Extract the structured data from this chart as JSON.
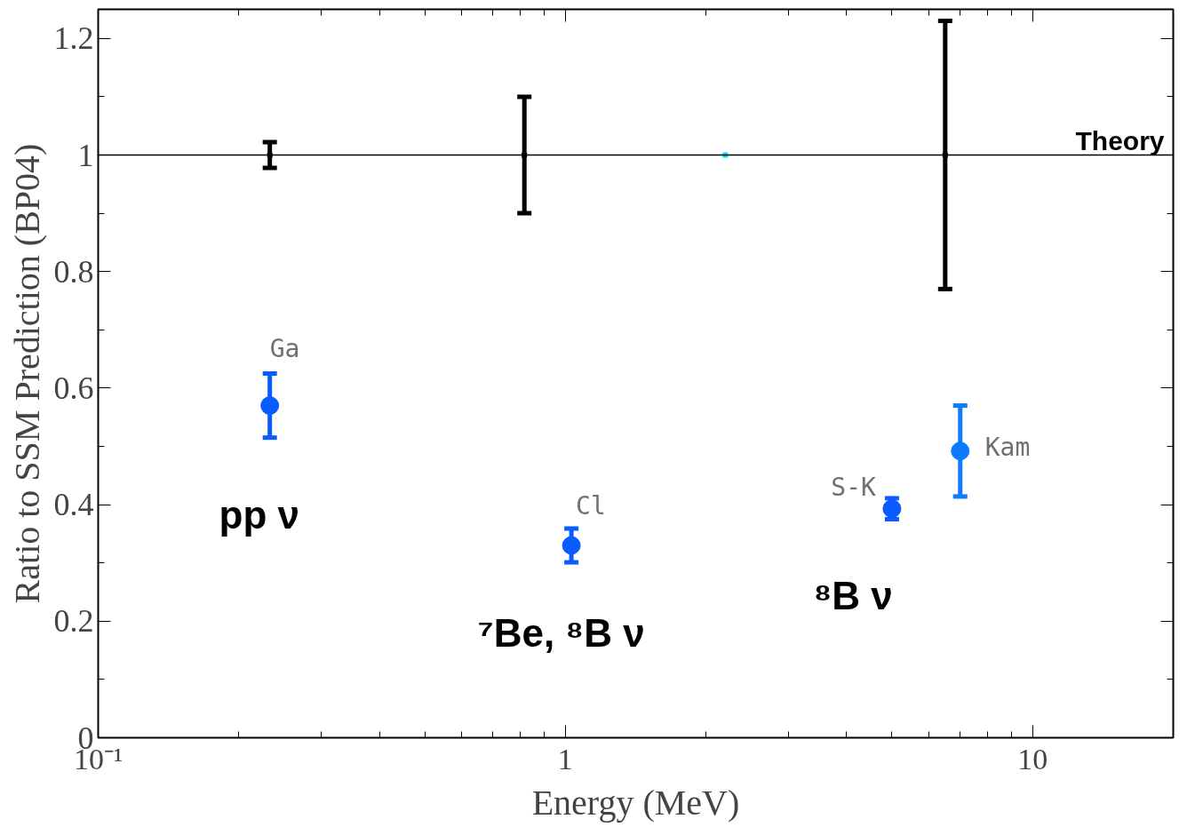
{
  "chart_data": {
    "type": "scatter",
    "xlabel": "Energy (MeV)",
    "ylabel": "Ratio to SSM Prediction (BP04)",
    "log": "x",
    "grid": false,
    "xlim": [
      0.1,
      20
    ],
    "ylim": [
      0,
      1.25
    ],
    "xticks": [
      {
        "value": 0.1,
        "label": "10⁻¹"
      },
      {
        "value": 0.2,
        "label": null
      },
      {
        "value": 0.3,
        "label": null
      },
      {
        "value": 0.4,
        "label": null
      },
      {
        "value": 0.5,
        "label": null
      },
      {
        "value": 0.6,
        "label": null
      },
      {
        "value": 0.7,
        "label": null
      },
      {
        "value": 0.8,
        "label": null
      },
      {
        "value": 0.9,
        "label": null
      },
      1,
      {
        "value": 2,
        "label": null
      },
      {
        "value": 3,
        "label": null
      },
      {
        "value": 4,
        "label": null
      },
      {
        "value": 5,
        "label": null
      },
      {
        "value": 6,
        "label": null
      },
      {
        "value": 7,
        "label": null
      },
      {
        "value": 8,
        "label": null
      },
      {
        "value": 9,
        "label": null
      },
      10
    ],
    "yticks": [
      0,
      {
        "value": 0.1,
        "label": null
      },
      0.2,
      {
        "value": 0.3,
        "label": null
      },
      0.4,
      {
        "value": 0.5,
        "label": null
      },
      0.6,
      {
        "value": 0.7,
        "label": null
      },
      0.8,
      {
        "value": 0.9,
        "label": null
      },
      1,
      {
        "value": 1.1,
        "label": null
      },
      1.2
    ],
    "series": [
      {
        "marker": "circle",
        "x": [
          0.233,
          1.03,
          5.0,
          7.0
        ],
        "values": [
          0.57,
          0.33,
          0.393,
          0.492
        ],
        "errors": [
          0.055,
          0.029,
          0.018,
          0.078
        ],
        "colors": [
          "#0a5cff",
          "#0a5cff",
          "#0a5cff",
          "#0b7bff"
        ]
      },
      {
        "marker": "square",
        "x": [
          0.233,
          0.817,
          6.5
        ],
        "values": [
          1.0,
          1.0,
          1.0
        ],
        "errors": [
          0.022,
          0.1,
          0.23
        ],
        "color": "#000000"
      },
      {
        "marker": "square",
        "x": [
          2.2
        ],
        "values": [
          1.0
        ],
        "color": "#00e5ff"
      }
    ],
    "ref_lines": [
      {
        "axis": "y",
        "value": 1,
        "label": "Theory",
        "color": "#000000"
      }
    ],
    "annotations": [
      {
        "text": "Ga",
        "x": 0.233,
        "y": 0.57
      },
      {
        "text": "Cl",
        "x": 1.03,
        "y": 0.33
      },
      {
        "text": "S-K",
        "x": 5.0,
        "y": 0.393
      },
      {
        "text": "Kam",
        "x": 7.0,
        "y": 0.492
      },
      "pp ν",
      "⁷Be, ⁸B ν",
      "⁸B ν"
    ]
  }
}
